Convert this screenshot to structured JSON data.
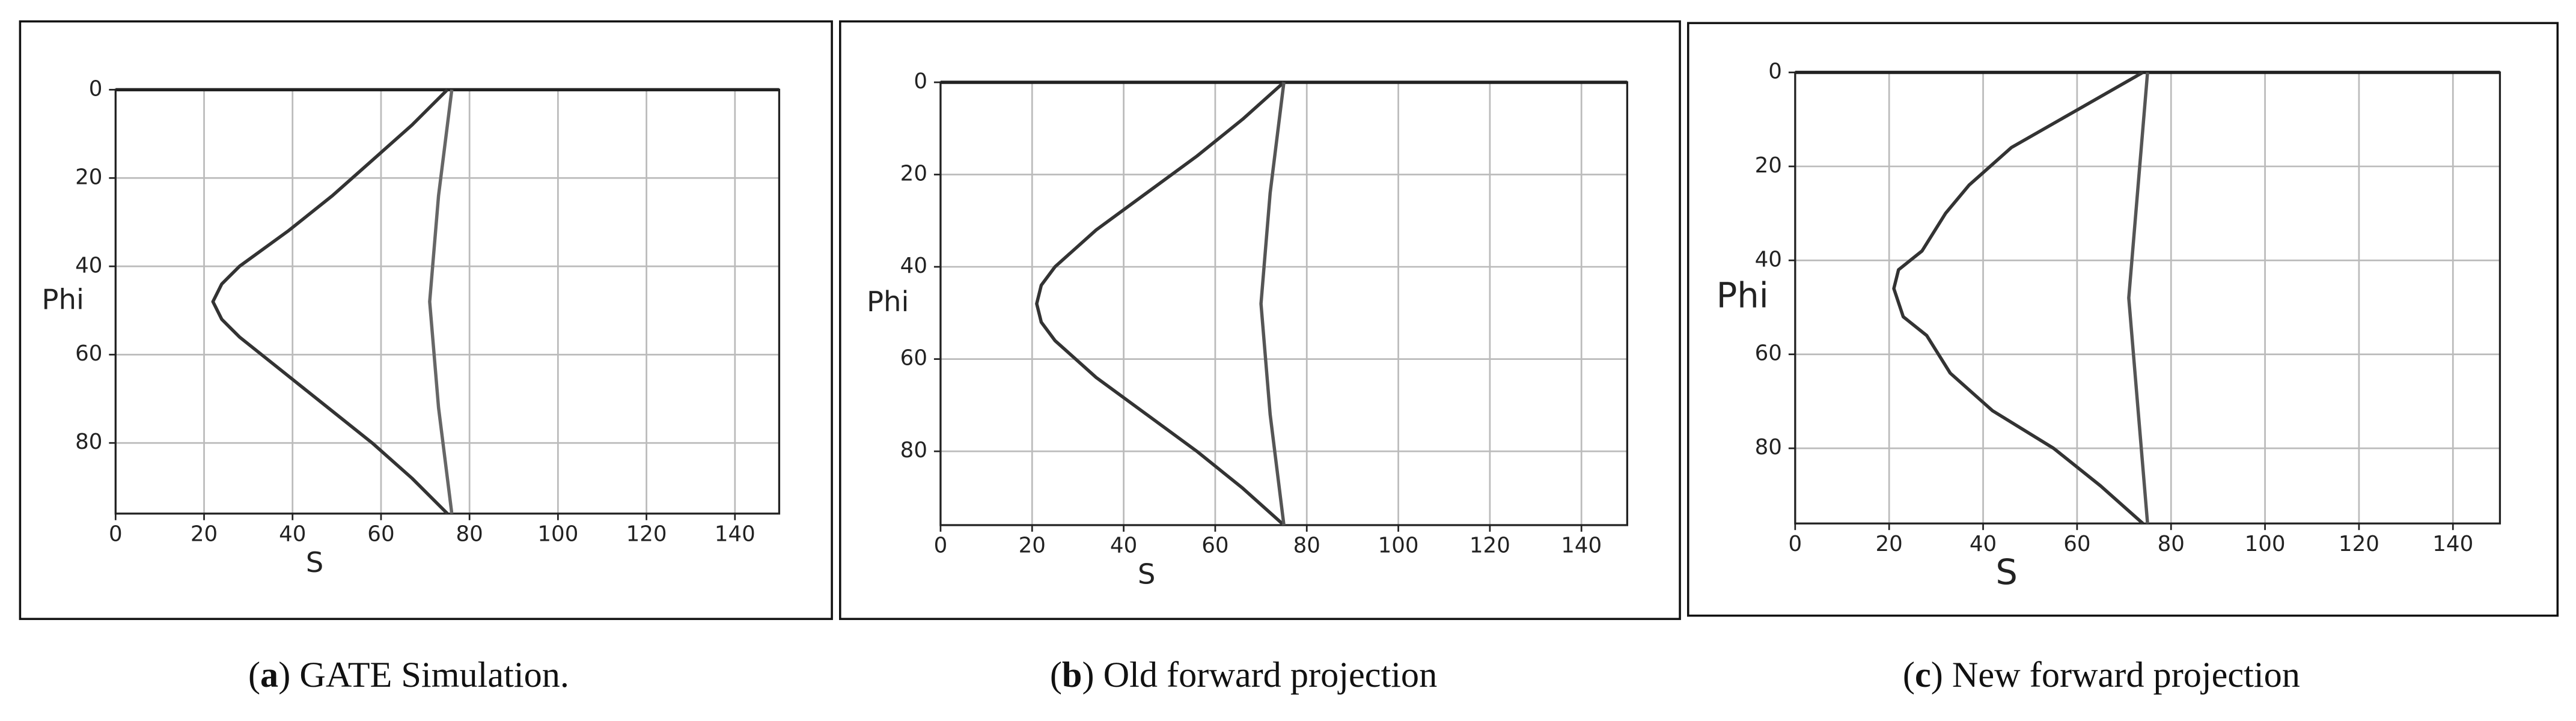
{
  "chart_data": [
    {
      "type": "line",
      "xlabel": "S",
      "ylabel": "Phi",
      "caption_label": "a",
      "caption": "GATE Simulation.",
      "xlim": [
        0,
        150
      ],
      "xticks": [
        0,
        20,
        40,
        60,
        80,
        100,
        120,
        140
      ],
      "ylim": [
        0,
        96
      ],
      "y_inverted": true,
      "yticks": [
        0,
        20,
        40,
        60,
        80
      ],
      "grid": true,
      "series": [
        {
          "color": "#333333",
          "x": [
            75,
            67,
            58,
            49,
            39,
            28,
            24,
            22,
            24,
            28,
            38,
            48,
            58,
            67,
            75
          ],
          "values": [
            0,
            8,
            16,
            24,
            32,
            40,
            44,
            48,
            52,
            56,
            64,
            72,
            80,
            88,
            96
          ]
        },
        {
          "color": "#666666",
          "x": [
            76,
            73,
            71,
            73,
            76
          ],
          "values": [
            0,
            24,
            48,
            72,
            96
          ]
        }
      ]
    },
    {
      "type": "line",
      "xlabel": "S",
      "ylabel": "Phi",
      "caption_label": "b",
      "caption": "Old forward projection",
      "xlim": [
        0,
        150
      ],
      "xticks": [
        0,
        20,
        40,
        60,
        80,
        100,
        120,
        140
      ],
      "ylim": [
        0,
        96
      ],
      "y_inverted": true,
      "yticks": [
        0,
        20,
        40,
        60,
        80
      ],
      "grid": true,
      "series": [
        {
          "color": "#333333",
          "x": [
            75,
            66,
            56,
            45,
            34,
            25,
            22,
            21,
            22,
            25,
            34,
            45,
            56,
            66,
            75
          ],
          "values": [
            0,
            8,
            16,
            24,
            32,
            40,
            44,
            48,
            52,
            56,
            64,
            72,
            80,
            88,
            96
          ]
        },
        {
          "color": "#555555",
          "x": [
            75,
            72,
            70,
            72,
            75
          ],
          "values": [
            0,
            24,
            48,
            72,
            96
          ]
        }
      ]
    },
    {
      "type": "line",
      "xlabel": "S",
      "ylabel": "Phi",
      "caption_label": "c",
      "caption": "New forward projection",
      "xlim": [
        0,
        150
      ],
      "xticks": [
        0,
        20,
        40,
        60,
        80,
        100,
        120,
        140
      ],
      "ylim": [
        0,
        96
      ],
      "y_inverted": true,
      "yticks": [
        0,
        20,
        40,
        60,
        80
      ],
      "grid": true,
      "series": [
        {
          "color": "#333333",
          "x": [
            74,
            60,
            46,
            37,
            32,
            27,
            22,
            21,
            23,
            28,
            33,
            42,
            55,
            65,
            74
          ],
          "values": [
            0,
            8,
            16,
            24,
            30,
            38,
            42,
            46,
            52,
            56,
            64,
            72,
            80,
            88,
            96
          ]
        },
        {
          "color": "#555555",
          "x": [
            75,
            73,
            71,
            73,
            75
          ],
          "values": [
            0,
            24,
            48,
            72,
            96
          ]
        }
      ]
    }
  ]
}
